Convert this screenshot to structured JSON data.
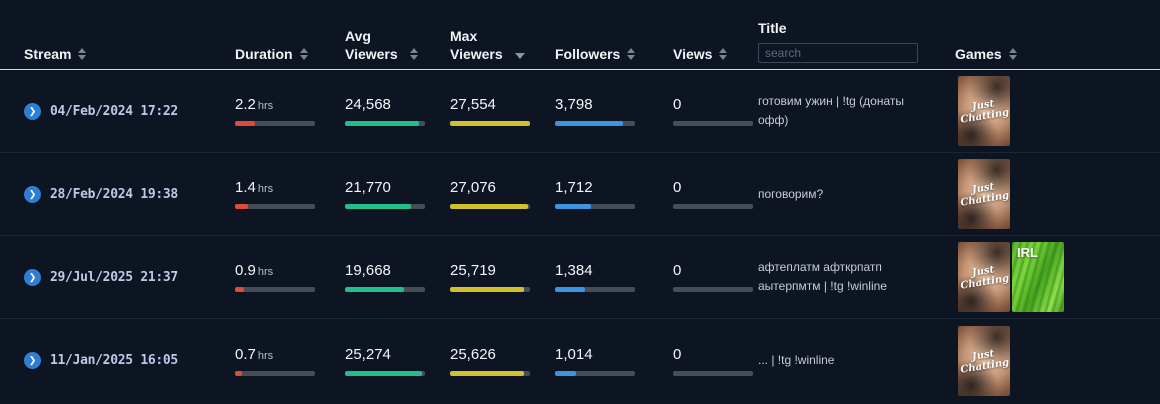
{
  "header": {
    "columns": {
      "stream": "Stream",
      "duration": "Duration",
      "avg_viewers": "Avg Viewers",
      "max_viewers": "Max Viewers",
      "followers": "Followers",
      "views": "Views",
      "title": "Title",
      "games": "Games"
    },
    "title_search_placeholder": "search",
    "sorted_column": "max_viewers",
    "sort_direction": "desc"
  },
  "colors": {
    "background": "#0d1422",
    "duration_bar": "#dd4b39",
    "avg_viewers_bar": "#21c08b",
    "max_viewers_bar": "#cfc22d",
    "followers_bar": "#3e94e0",
    "link_accent": "#2e7ed3"
  },
  "rows": [
    {
      "date": "04/Feb/2024 17:22",
      "duration_value": "2.2",
      "duration_unit": "hrs",
      "duration_pct": 25,
      "avg_viewers": "24,568",
      "avg_pct": 93,
      "max_viewers": "27,554",
      "max_pct": 100,
      "followers": "3,798",
      "followers_pct": 85,
      "views": "0",
      "views_pct": 0,
      "title": "готовим ужин | !tg (донаты офф)",
      "games": [
        {
          "id": "just-chatting",
          "label": "Just Chatting"
        }
      ]
    },
    {
      "date": "28/Feb/2024 19:38",
      "duration_value": "1.4",
      "duration_unit": "hrs",
      "duration_pct": 16,
      "avg_viewers": "21,770",
      "avg_pct": 82,
      "max_viewers": "27,076",
      "max_pct": 98,
      "followers": "1,712",
      "followers_pct": 45,
      "views": "0",
      "views_pct": 0,
      "title": "поговорим?",
      "games": [
        {
          "id": "just-chatting",
          "label": "Just Chatting"
        }
      ]
    },
    {
      "date": "29/Jul/2025 21:37",
      "duration_value": "0.9",
      "duration_unit": "hrs",
      "duration_pct": 11,
      "avg_viewers": "19,668",
      "avg_pct": 74,
      "max_viewers": "25,719",
      "max_pct": 93,
      "followers": "1,384",
      "followers_pct": 37,
      "views": "0",
      "views_pct": 0,
      "title": "афтеплатм афткрпатп аытерпмтм | !tg !winline",
      "games": [
        {
          "id": "just-chatting",
          "label": "Just Chatting"
        },
        {
          "id": "irl",
          "label": "IRL"
        }
      ]
    },
    {
      "date": "11/Jan/2025 16:05",
      "duration_value": "0.7",
      "duration_unit": "hrs",
      "duration_pct": 9,
      "avg_viewers": "25,274",
      "avg_pct": 96,
      "max_viewers": "25,626",
      "max_pct": 93,
      "followers": "1,014",
      "followers_pct": 26,
      "views": "0",
      "views_pct": 0,
      "title": "... | !tg !winline",
      "games": [
        {
          "id": "just-chatting",
          "label": "Just Chatting"
        }
      ]
    }
  ]
}
